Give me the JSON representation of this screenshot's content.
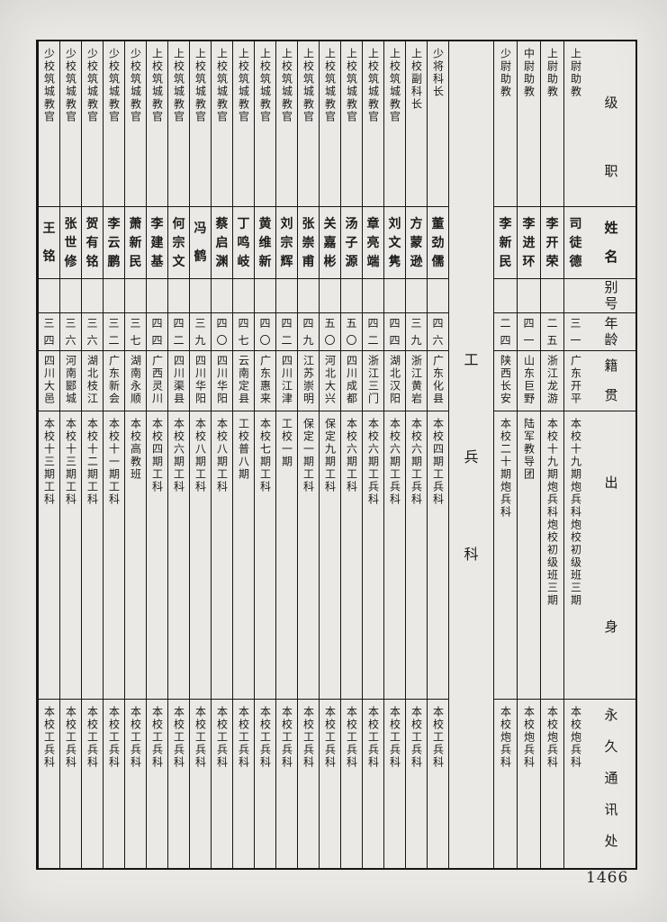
{
  "page": {
    "number": "1466",
    "section_title": "工兵科"
  },
  "colors": {
    "paper": "#eae9e5",
    "ink": "#1b1b1b",
    "line": "#161616"
  },
  "headers": {
    "rank": "级职",
    "name": "姓名",
    "alias": "别号",
    "age": "年龄",
    "place": "籍贯",
    "origin": "出身",
    "contact": "永久通讯处"
  },
  "artillery_people": [
    {
      "rank": "上尉助教",
      "name": "司徒德",
      "alias": "",
      "age": "三一",
      "place": "广东开平",
      "origin": "本校十九期炮兵科炮校初级班三期",
      "contact": "本校炮兵科"
    },
    {
      "rank": "上尉助教",
      "name": "李开荣",
      "alias": "",
      "age": "二五",
      "place": "浙江龙游",
      "origin": "本校十九期炮兵科炮校初级班三期",
      "contact": "本校炮兵科"
    },
    {
      "rank": "中尉助教",
      "name": "李进环",
      "alias": "",
      "age": "四一",
      "place": "山东巨野",
      "origin": "陆军教导团",
      "contact": "本校炮兵科"
    },
    {
      "rank": "少尉助教",
      "name": "李新民",
      "alias": "",
      "age": "二四",
      "place": "陕西长安",
      "origin": "本校二十期炮兵科",
      "contact": "本校炮兵科"
    }
  ],
  "engineer_people": [
    {
      "rank": "少将科长",
      "name": "董劲儒",
      "alias": "",
      "age": "四六",
      "place": "广东化县",
      "origin": "本校四期工兵科",
      "contact": "本校工兵科"
    },
    {
      "rank": "上校副科长",
      "name": "方蒙逊",
      "alias": "",
      "age": "三九",
      "place": "浙江黄岩",
      "origin": "本校六期工兵科",
      "contact": "本校工兵科"
    },
    {
      "rank": "上校筑城教官",
      "name": "刘文隽",
      "alias": "",
      "age": "四四",
      "place": "湖北汉阳",
      "origin": "本校六期工兵科",
      "contact": "本校工兵科"
    },
    {
      "rank": "上校筑城教官",
      "name": "章亮端",
      "alias": "",
      "age": "四二",
      "place": "浙江三门",
      "origin": "本校六期工兵科",
      "contact": "本校工兵科"
    },
    {
      "rank": "上校筑城教官",
      "name": "汤子源",
      "alias": "",
      "age": "五〇",
      "place": "四川成都",
      "origin": "本校六期工科",
      "contact": "本校工兵科"
    },
    {
      "rank": "上校筑城教官",
      "name": "关嘉彬",
      "alias": "",
      "age": "五〇",
      "place": "河北大兴",
      "origin": "保定九期工科",
      "contact": "本校工兵科"
    },
    {
      "rank": "上校筑城教官",
      "name": "张崇甫",
      "alias": "",
      "age": "四九",
      "place": "江苏崇明",
      "origin": "保定一期工科",
      "contact": "本校工兵科"
    },
    {
      "rank": "上校筑城教官",
      "name": "刘宗辉",
      "alias": "",
      "age": "四二",
      "place": "四川江津",
      "origin": "工校一期",
      "contact": "本校工兵科"
    },
    {
      "rank": "上校筑城教官",
      "name": "黄维新",
      "alias": "",
      "age": "四〇",
      "place": "广东惠来",
      "origin": "本校七期工科",
      "contact": "本校工兵科"
    },
    {
      "rank": "上校筑城教官",
      "name": "丁鸣岐",
      "alias": "",
      "age": "四七",
      "place": "云南定县",
      "origin": "工校普八期",
      "contact": "本校工兵科"
    },
    {
      "rank": "上校筑城教官",
      "name": "蔡启渊",
      "alias": "",
      "age": "四〇",
      "place": "四川华阳",
      "origin": "本校八期工科",
      "contact": "本校工兵科"
    },
    {
      "rank": "上校筑城教官",
      "name": "冯鹤",
      "alias": "",
      "age": "三九",
      "place": "四川华阳",
      "origin": "本校八期工科",
      "contact": "本校工兵科"
    },
    {
      "rank": "上校筑城教官",
      "name": "何宗文",
      "alias": "",
      "age": "四二",
      "place": "四川渠县",
      "origin": "本校六期工科",
      "contact": "本校工兵科"
    },
    {
      "rank": "上校筑城教官",
      "name": "李建基",
      "alias": "",
      "age": "四四",
      "place": "广西灵川",
      "origin": "本校四期工科",
      "contact": "本校工兵科"
    },
    {
      "rank": "少校筑城教官",
      "name": "萧新民",
      "alias": "",
      "age": "三七",
      "place": "湖南永顺",
      "origin": "本校高教班",
      "contact": "本校工兵科"
    },
    {
      "rank": "少校筑城教官",
      "name": "李云鹏",
      "alias": "",
      "age": "三二",
      "place": "广东新会",
      "origin": "本校十一期工科",
      "contact": "本校工兵科"
    },
    {
      "rank": "少校筑城教官",
      "name": "贺有铭",
      "alias": "",
      "age": "三六",
      "place": "湖北枝江",
      "origin": "本校十二期工科",
      "contact": "本校工兵科"
    },
    {
      "rank": "少校筑城教官",
      "name": "张世修",
      "alias": "",
      "age": "三六",
      "place": "河南郾城",
      "origin": "本校十三期工科",
      "contact": "本校工兵科"
    },
    {
      "rank": "少校筑城教官",
      "name": "王铭",
      "alias": "",
      "age": "三四",
      "place": "四川大邑",
      "origin": "本校十三期工科",
      "contact": "本校工兵科"
    }
  ]
}
